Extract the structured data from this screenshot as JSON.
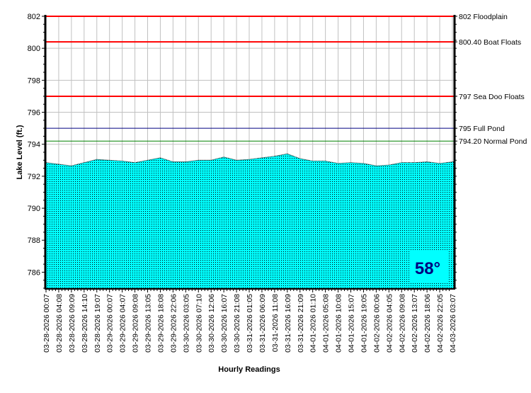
{
  "chart_data": {
    "type": "area",
    "title": "",
    "xlabel": "Hourly Readings",
    "ylabel": "Lake Level (ft.)",
    "ylim": [
      785,
      802
    ],
    "yticks": [
      786,
      788,
      790,
      792,
      794,
      796,
      798,
      800,
      802
    ],
    "grid": true,
    "x": [
      "03-28-2026 00:07",
      "03-28-2026 04:08",
      "03-28-2026 09:09",
      "03-28-2026 14:10",
      "03-28-2026 19:07",
      "03-29-2026 00:07",
      "03-29-2026 04:07",
      "03-29-2026 09:08",
      "03-29-2026 13:05",
      "03-29-2026 18:08",
      "03-29-2026 22:06",
      "03-30-2026 03:05",
      "03-30-2026 07:10",
      "03-30-2026 12:06",
      "03-30-2026 16:07",
      "03-30-2026 21:08",
      "03-31-2026 01:05",
      "03-31-2026 06:09",
      "03-31-2026 11:08",
      "03-31-2026 16:09",
      "03-31-2026 21:09",
      "04-01-2026 01:10",
      "04-01-2026 05:08",
      "04-01-2026 10:08",
      "04-01-2026 15:07",
      "04-01-2026 19:05",
      "04-02-2026 00:06",
      "04-02-2026 04:05",
      "04-02-2026 09:08",
      "04-02-2026 13:07",
      "04-02-2026 18:06",
      "04-02-2026 22:05",
      "04-03-2026 03:07"
    ],
    "values": [
      792.85,
      792.75,
      792.65,
      792.85,
      793.05,
      793.0,
      792.95,
      792.85,
      793.0,
      793.15,
      792.9,
      792.9,
      793.0,
      793.0,
      793.2,
      793.0,
      793.05,
      793.15,
      793.25,
      793.4,
      793.1,
      792.95,
      792.95,
      792.8,
      792.85,
      792.8,
      792.65,
      792.7,
      792.85,
      792.85,
      792.9,
      792.8,
      792.9
    ],
    "fill_color": "#00ffff",
    "reference_lines": [
      {
        "value": 802,
        "label": "802 Floodplain",
        "color": "#ff0000"
      },
      {
        "value": 800.4,
        "label": "800.40 Boat Floats",
        "color": "#ff0000"
      },
      {
        "value": 797,
        "label": "797 Sea Doo Floats",
        "color": "#ff0000"
      },
      {
        "value": 795,
        "label": "795 Full Pond",
        "color": "#000080"
      },
      {
        "value": 794.2,
        "label": "794.20 Normal Pond",
        "color": "#008000"
      }
    ]
  },
  "temperature": {
    "label": "58°",
    "color": "#000080",
    "bg": "#00ffff"
  }
}
